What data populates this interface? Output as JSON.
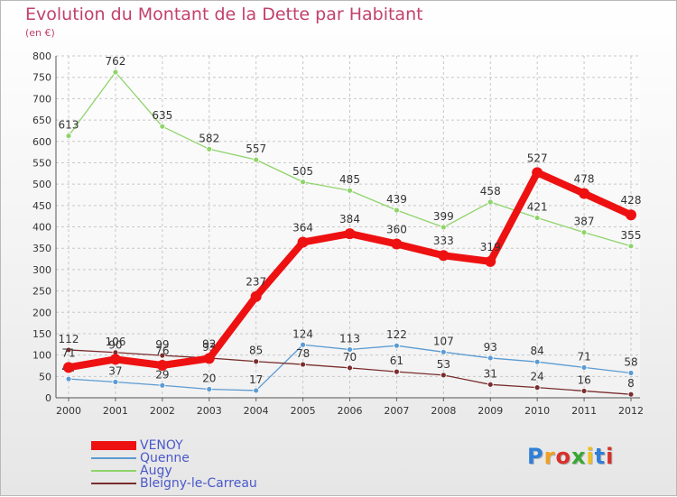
{
  "header": {
    "title": "Evolution du Montant de la Dette par Habitant",
    "subtitle": "(en €)"
  },
  "logo": {
    "text": "Proxiti",
    "colors": [
      "#2f7fd8",
      "#f0a020",
      "#d9302a",
      "#38a832",
      "#f0c020",
      "#2f7fd8",
      "#d9302a"
    ]
  },
  "chart_data": {
    "type": "line",
    "title": "Evolution du Montant de la Dette par Habitant",
    "subtitle": "(en €)",
    "x": [
      "2000",
      "2001",
      "2002",
      "2003",
      "2004",
      "2005",
      "2006",
      "2007",
      "2008",
      "2009",
      "2010",
      "2011",
      "2012"
    ],
    "ylim": [
      0,
      800
    ],
    "yticks": [
      0,
      50,
      100,
      150,
      200,
      250,
      300,
      350,
      400,
      450,
      500,
      550,
      600,
      650,
      700,
      750,
      800
    ],
    "grid": true,
    "legend": "bottom-left",
    "series": [
      {
        "name": "Augy",
        "color": "#8fd46a",
        "values": [
          613,
          762,
          635,
          582,
          557,
          505,
          485,
          439,
          399,
          458,
          421,
          387,
          355
        ]
      },
      {
        "name": "Quenne",
        "color": "#5b9bd2",
        "values": [
          44,
          37,
          29,
          20,
          17,
          124,
          113,
          122,
          107,
          93,
          84,
          71,
          58
        ]
      },
      {
        "name": "Bleigny-le-Carreau",
        "color": "#7a2e2e",
        "values": [
          112,
          106,
          99,
          93,
          85,
          78,
          70,
          61,
          53,
          31,
          24,
          16,
          8
        ]
      },
      {
        "name": "VENOY",
        "color": "#ee1111",
        "values": [
          71,
          90,
          76,
          92,
          237,
          364,
          384,
          360,
          333,
          319,
          527,
          478,
          428
        ]
      }
    ]
  },
  "legend_items": [
    {
      "name": "VENOY",
      "color": "#ee1111",
      "thickness": 10
    },
    {
      "name": "Quenne",
      "color": "#5b9bd2",
      "thickness": 2
    },
    {
      "name": "Augy",
      "color": "#8fd46a",
      "thickness": 2
    },
    {
      "name": "Bleigny-le-Carreau",
      "color": "#7a2e2e",
      "thickness": 2
    }
  ]
}
